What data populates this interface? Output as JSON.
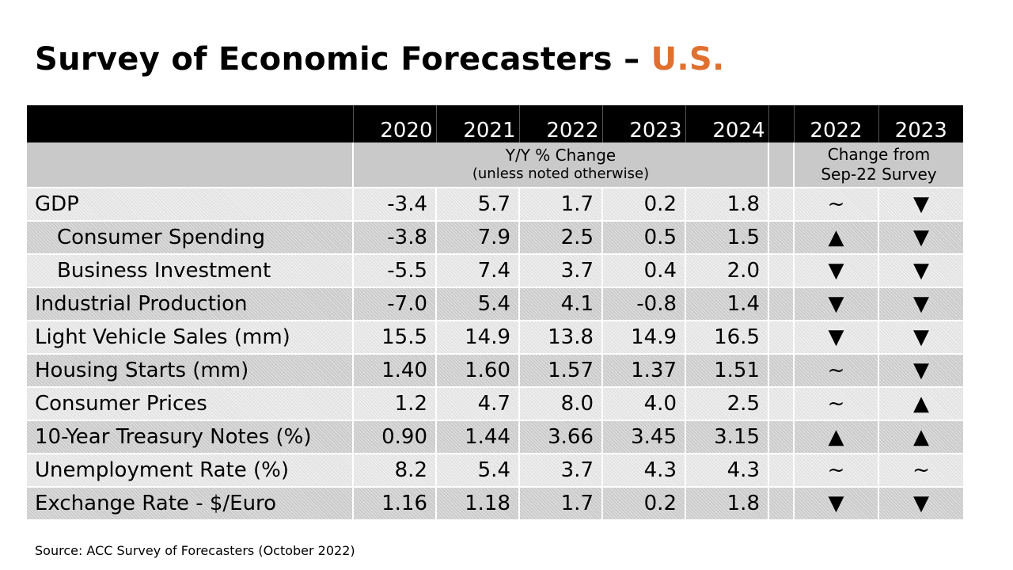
{
  "title": {
    "main": "Survey of Economic Forecasters – ",
    "accent": "U.S.",
    "accent_color": "#e07030"
  },
  "table": {
    "years": [
      "2020",
      "2021",
      "2022",
      "2023",
      "2024"
    ],
    "change_years": [
      "2022",
      "2023"
    ],
    "subheader_left_line1": "Y/Y % Change",
    "subheader_left_line2": "(unless noted otherwise)",
    "subheader_right_line1": "Change from",
    "subheader_right_line2": "Sep-22 Survey",
    "rows": [
      {
        "label": "GDP",
        "values": [
          "-3.4",
          "5.7",
          "1.7",
          "0.2",
          "1.8"
        ],
        "changes": [
          "~",
          "▼"
        ]
      },
      {
        "label": "Consumer Spending",
        "values": [
          "-3.8",
          "7.9",
          "2.5",
          "0.5",
          "1.5"
        ],
        "changes": [
          "▲",
          "▼"
        ]
      },
      {
        "label": "Business Investment",
        "values": [
          "-5.5",
          "7.4",
          "3.7",
          "0.4",
          "2.0"
        ],
        "changes": [
          "▼",
          "▼"
        ]
      },
      {
        "label": "Industrial Production",
        "values": [
          "-7.0",
          "5.4",
          "4.1",
          "-0.8",
          "1.4"
        ],
        "changes": [
          "▼",
          "▼"
        ]
      },
      {
        "label": "Light Vehicle Sales (mm)",
        "values": [
          "15.5",
          "14.9",
          "13.8",
          "14.9",
          "16.5"
        ],
        "changes": [
          "▼",
          "▼"
        ]
      },
      {
        "label": "Housing Starts (mm)",
        "values": [
          "1.40",
          "1.60",
          "1.57",
          "1.37",
          "1.51"
        ],
        "changes": [
          "~",
          "▼"
        ]
      },
      {
        "label": "Consumer Prices",
        "values": [
          "1.2",
          "4.7",
          "8.0",
          "4.0",
          "2.5"
        ],
        "changes": [
          "~",
          "▲"
        ]
      },
      {
        "label": "10-Year Treasury Notes (%)",
        "values": [
          "0.90",
          "1.44",
          "3.66",
          "3.45",
          "3.15"
        ],
        "changes": [
          "▲",
          "▲"
        ]
      },
      {
        "label": "Unemployment Rate (%)",
        "values": [
          "8.2",
          "5.4",
          "3.7",
          "4.3",
          "4.3"
        ],
        "changes": [
          "~",
          "~"
        ]
      },
      {
        "label": "Exchange Rate - $/Euro",
        "values": [
          "1.16",
          "1.18",
          "1.7",
          "0.2",
          "1.8"
        ],
        "changes": [
          "▼",
          "▼"
        ]
      }
    ]
  },
  "source": "Source: ACC Survey of Forecasters (October 2022)"
}
